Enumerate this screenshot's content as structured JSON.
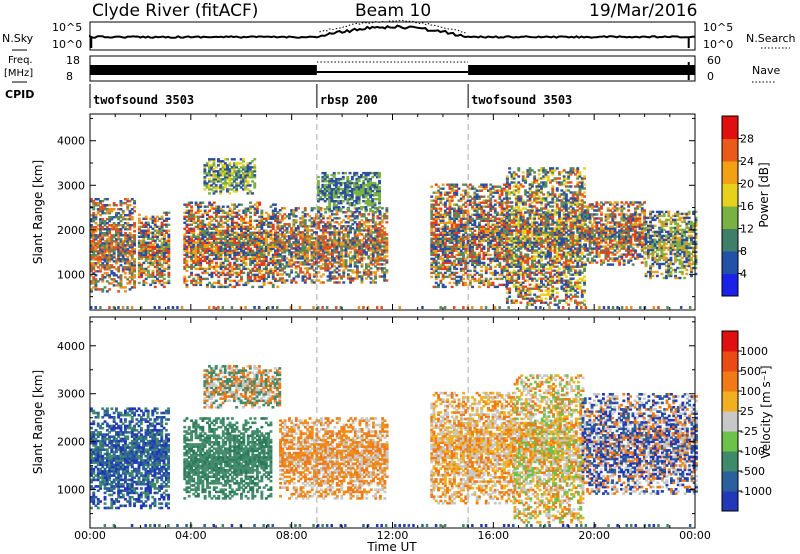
{
  "header": {
    "station": "Clyde River (fitACF)",
    "beam": "Beam 10",
    "date": "19/Mar/2016"
  },
  "summary_panels": {
    "nsky_label": "N.Sky",
    "nsearch_label": "N.Search",
    "nsky_ticks": [
      "10^5",
      "10^0"
    ],
    "nsearch_ticks": [
      "10^5",
      "10^0"
    ],
    "freq_label_line1": "Freq.",
    "freq_label_line2": "[MHz]",
    "freq_ticks": [
      "18",
      "8"
    ],
    "nave_label": "Nave",
    "nave_ticks": [
      "60",
      "0"
    ],
    "cpid_label": "CPID",
    "cpid_segments": [
      {
        "name": "twofsound 3503",
        "start_h": 0,
        "end_h": 9
      },
      {
        "name": "rbsp 200",
        "start_h": 9,
        "end_h": 15
      },
      {
        "name": "twofsound 3503",
        "start_h": 15,
        "end_h": 24
      }
    ]
  },
  "chart_data": [
    {
      "type": "heatmap",
      "name": "power",
      "ylabel": "Slant Range [km]",
      "ylim": [
        200,
        4600
      ],
      "yticks": [
        "1000",
        "2000",
        "3000",
        "4000"
      ],
      "xlim_hours": [
        0,
        24
      ],
      "colorbar_label": "Power [dB]",
      "colorbar_ticks": [
        "4",
        "8",
        "12",
        "16",
        "20",
        "24",
        "28"
      ],
      "colorbar_colors": [
        "#1a22e8",
        "#2252a8",
        "#3f7f6a",
        "#79b243",
        "#e6d21a",
        "#f2a114",
        "#ea5a18",
        "#e01010"
      ],
      "regions": [
        {
          "t0": 0.0,
          "t1": 1.8,
          "r0": 600,
          "r1": 2700,
          "mix": [
            "#2a4fa0",
            "#5a8a5a",
            "#e89020",
            "#e05020"
          ]
        },
        {
          "t0": 1.9,
          "t1": 3.1,
          "r0": 700,
          "r1": 2400,
          "mix": [
            "#2a4fa0",
            "#6aa050",
            "#e8a020",
            "#e04020"
          ]
        },
        {
          "t0": 3.7,
          "t1": 7.4,
          "r0": 700,
          "r1": 2600,
          "mix": [
            "#2a4fa0",
            "#5a8a5a",
            "#f0a010",
            "#e04020"
          ]
        },
        {
          "t0": 4.5,
          "t1": 6.5,
          "r0": 2800,
          "r1": 3600,
          "mix": [
            "#2a4fa0",
            "#79b243",
            "#e8d020"
          ]
        },
        {
          "t0": 7.4,
          "t1": 11.8,
          "r0": 800,
          "r1": 2500,
          "mix": [
            "#2a4fa0",
            "#5a8a5a",
            "#e8a020",
            "#e05020"
          ]
        },
        {
          "t0": 9.0,
          "t1": 11.5,
          "r0": 2400,
          "r1": 3300,
          "mix": [
            "#2a4fa0",
            "#79b243"
          ]
        },
        {
          "t0": 13.5,
          "t1": 16.5,
          "r0": 700,
          "r1": 3000,
          "mix": [
            "#2a4fa0",
            "#5a8a5a",
            "#e8a020",
            "#e04020"
          ]
        },
        {
          "t0": 16.5,
          "t1": 19.6,
          "r0": 300,
          "r1": 3400,
          "mix": [
            "#2a4fa0",
            "#5a8a5a",
            "#e8d020",
            "#e05020"
          ]
        },
        {
          "t0": 19.6,
          "t1": 22.0,
          "r0": 1200,
          "r1": 2600,
          "mix": [
            "#2a4fa0",
            "#5a8a5a",
            "#e8a020",
            "#e04020"
          ]
        },
        {
          "t0": 22.0,
          "t1": 24.0,
          "r0": 900,
          "r1": 2400,
          "mix": [
            "#2a4fa0",
            "#79b243",
            "#e8a020"
          ]
        }
      ]
    },
    {
      "type": "heatmap",
      "name": "velocity",
      "ylabel": "Slant Range [km]",
      "xlabel": "Time UT",
      "ylim": [
        200,
        4600
      ],
      "yticks": [
        "1000",
        "2000",
        "3000",
        "4000"
      ],
      "xticks": [
        "00:00",
        "04:00",
        "08:00",
        "12:00",
        "16:00",
        "20:00",
        "00:00"
      ],
      "xlim_hours": [
        0,
        24
      ],
      "colorbar_label": "Velocity [m s⁻¹]",
      "colorbar_ticks": [
        "1000",
        "500",
        "100",
        "25",
        "-25",
        "-100",
        "-500",
        "-1000"
      ],
      "colorbar_colors": [
        "#2238b8",
        "#2d5f9e",
        "#3f8a6a",
        "#6cc24a",
        "#c8c8c8",
        "#f0b020",
        "#f07a18",
        "#ea4a14",
        "#e01010"
      ],
      "regions": [
        {
          "t0": 0.0,
          "t1": 3.1,
          "r0": 600,
          "r1": 2700,
          "mix": [
            "#2238b8",
            "#2d5f9e",
            "#3f8a6a"
          ]
        },
        {
          "t0": 3.7,
          "t1": 7.2,
          "r0": 800,
          "r1": 2500,
          "mix": [
            "#3f8a6a",
            "#4a9070",
            "#2d7a5a"
          ]
        },
        {
          "t0": 4.5,
          "t1": 7.5,
          "r0": 2700,
          "r1": 3600,
          "mix": [
            "#c8c8c8",
            "#f07a18",
            "#3f8a6a"
          ]
        },
        {
          "t0": 7.5,
          "t1": 11.8,
          "r0": 800,
          "r1": 2500,
          "mix": [
            "#f07a18",
            "#f0901a",
            "#c8c8c8"
          ]
        },
        {
          "t0": 13.5,
          "t1": 16.8,
          "r0": 700,
          "r1": 3000,
          "mix": [
            "#f07a18",
            "#c8c8c8",
            "#f0b020"
          ]
        },
        {
          "t0": 16.8,
          "t1": 19.5,
          "r0": 300,
          "r1": 3400,
          "mix": [
            "#f07a18",
            "#c8c8c8",
            "#6cc24a",
            "#f0b020"
          ]
        },
        {
          "t0": 19.5,
          "t1": 24.0,
          "r0": 900,
          "r1": 3000,
          "mix": [
            "#2238b8",
            "#2d5f9e",
            "#c8c8c8",
            "#f07a18"
          ]
        }
      ]
    }
  ]
}
